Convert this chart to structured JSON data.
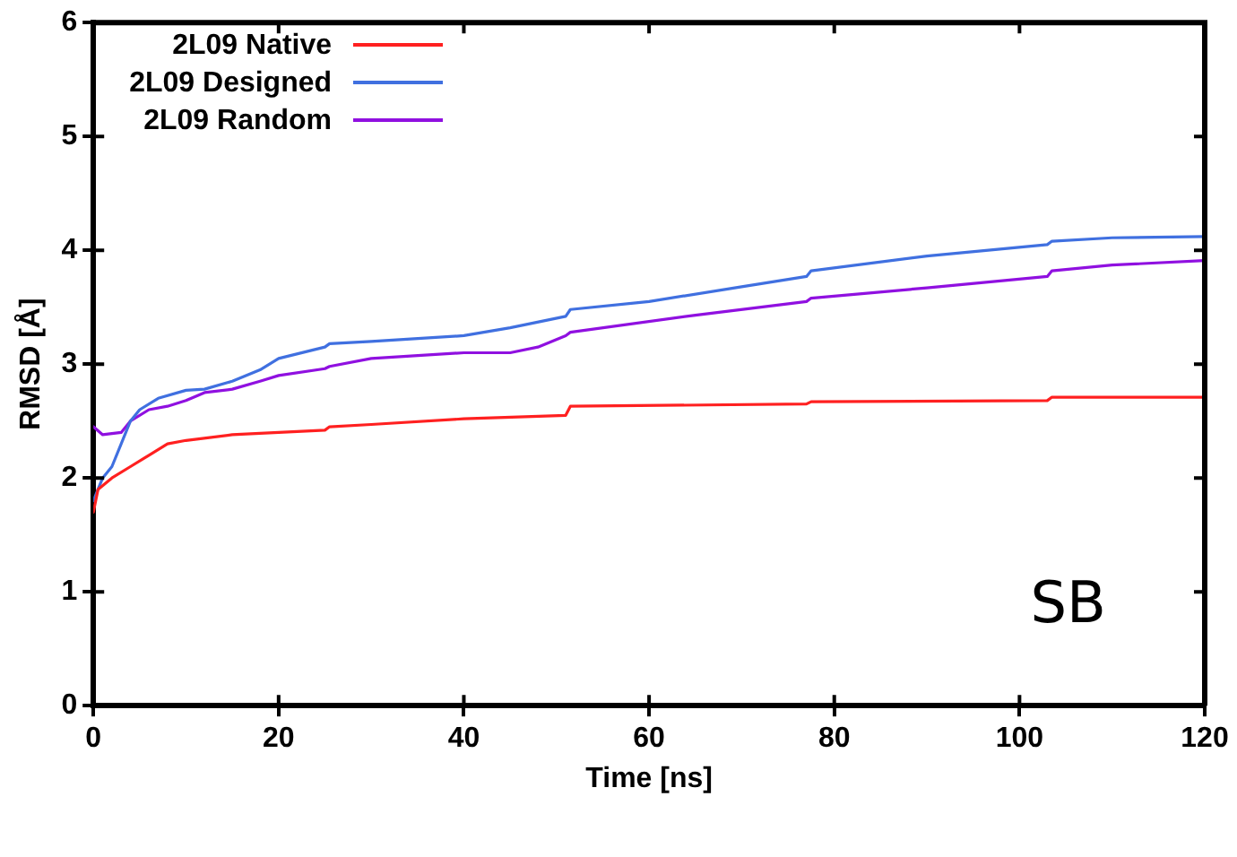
{
  "chart_data": {
    "type": "line",
    "xlabel": "Time [ns]",
    "ylabel": "RMSD [Å]",
    "xlim": [
      0,
      120
    ],
    "xticks": [
      0,
      20,
      40,
      60,
      80,
      100,
      120
    ],
    "ylim": [
      0,
      6
    ],
    "yticks": [
      0,
      1,
      2,
      3,
      4,
      5,
      6
    ],
    "grid": false,
    "legend": "top left",
    "marker": "none",
    "line_style": "solid",
    "annotations": [
      "SB"
    ],
    "series": [
      {
        "name": "2L09 Native",
        "color": "#ff2020",
        "x": [
          0,
          0.5,
          2,
          4,
          6,
          8,
          10,
          15,
          20,
          25,
          25.5,
          30,
          40,
          51,
          51.5,
          77,
          77.5,
          103,
          103.5,
          120
        ],
        "values": [
          1.7,
          1.9,
          2.0,
          2.1,
          2.2,
          2.3,
          2.33,
          2.38,
          2.4,
          2.42,
          2.45,
          2.47,
          2.52,
          2.55,
          2.63,
          2.65,
          2.67,
          2.68,
          2.71,
          2.71
        ]
      },
      {
        "name": "2L09 Designed",
        "color": "#4070e0",
        "x": [
          0,
          1,
          2,
          3,
          4,
          5,
          7,
          10,
          12,
          15,
          18,
          20,
          25,
          25.5,
          30,
          40,
          45,
          51,
          51.5,
          60,
          70,
          77,
          77.5,
          90,
          103,
          103.5,
          110,
          120
        ],
        "values": [
          1.8,
          2.0,
          2.1,
          2.3,
          2.5,
          2.6,
          2.7,
          2.77,
          2.78,
          2.85,
          2.95,
          3.05,
          3.15,
          3.18,
          3.2,
          3.25,
          3.32,
          3.42,
          3.48,
          3.55,
          3.68,
          3.77,
          3.82,
          3.95,
          4.05,
          4.08,
          4.11,
          4.12
        ]
      },
      {
        "name": "2L09 Random",
        "color": "#9010e0",
        "x": [
          0,
          1,
          3,
          4,
          6,
          8,
          10,
          12,
          15,
          18,
          20,
          25,
          25.5,
          30,
          40,
          45,
          48,
          51,
          51.5,
          65,
          77,
          77.5,
          90,
          103,
          103.5,
          110,
          120
        ],
        "values": [
          2.45,
          2.38,
          2.4,
          2.5,
          2.6,
          2.63,
          2.68,
          2.75,
          2.78,
          2.85,
          2.9,
          2.96,
          2.98,
          3.05,
          3.1,
          3.1,
          3.15,
          3.25,
          3.28,
          3.43,
          3.55,
          3.58,
          3.67,
          3.77,
          3.82,
          3.87,
          3.91
        ]
      }
    ]
  }
}
